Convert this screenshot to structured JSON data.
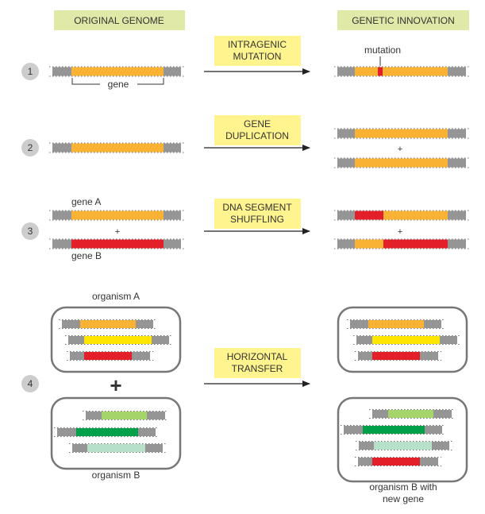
{
  "headers": {
    "left": "ORIGINAL GENOME",
    "right": "GENETIC INNOVATION"
  },
  "colors": {
    "header_bg": "#e0e9a8",
    "process_bg": "#fff48e",
    "gray": "#959595",
    "orange": "#f9b233",
    "red": "#e3202a",
    "yellow": "#ffe600",
    "light_green": "#a5d46a",
    "dark_green": "#00a04b",
    "pale_green": "#b7e0c8",
    "step_circle": "#cdcdcd",
    "box_border": "#777777"
  },
  "steps": [
    {
      "number": "1",
      "process": [
        "INTRAGENIC",
        "MUTATION"
      ],
      "left_labels": {
        "gene": "gene"
      },
      "right_labels": {
        "mutation": "mutation"
      }
    },
    {
      "number": "2",
      "process": [
        "GENE",
        "DUPLICATION"
      ],
      "plus": "+"
    },
    {
      "number": "3",
      "process": [
        "DNA SEGMENT",
        "SHUFFLING"
      ],
      "left_labels": {
        "gene_a": "gene A",
        "gene_b": "gene B"
      },
      "plus": "+"
    },
    {
      "number": "4",
      "process": [
        "HORIZONTAL",
        "TRANSFER"
      ],
      "left_labels": {
        "organism_a": "organism A",
        "organism_b": "organism B"
      },
      "plus": "+",
      "right_labels": {
        "result": [
          "organism B with",
          "new gene"
        ]
      }
    }
  ]
}
